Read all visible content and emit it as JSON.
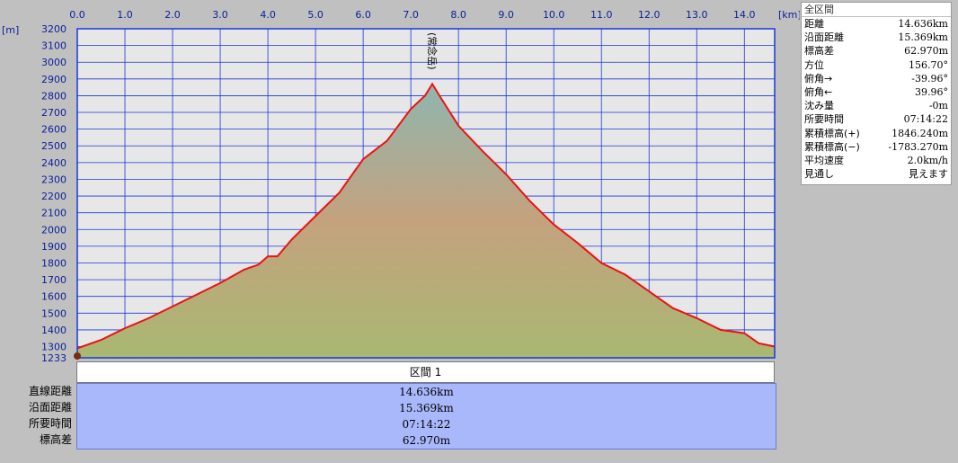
{
  "x_unit": "[km]",
  "y_unit": "[m]",
  "peak_label": "(常念岳)",
  "chart_data": {
    "type": "area",
    "xlim": [
      0,
      14.636
    ],
    "ylim": [
      1233,
      3200
    ],
    "x_ticks": [
      "0.0",
      "1.0",
      "2.0",
      "3.0",
      "4.0",
      "5.0",
      "6.0",
      "7.0",
      "8.0",
      "9.0",
      "10.0",
      "11.0",
      "12.0",
      "13.0",
      "14.0"
    ],
    "y_ticks": [
      "3200",
      "3100",
      "3000",
      "2900",
      "2800",
      "2700",
      "2600",
      "2500",
      "2400",
      "2300",
      "2200",
      "2100",
      "2000",
      "1900",
      "1800",
      "1700",
      "1600",
      "1500",
      "1400",
      "1300",
      "1233"
    ],
    "grid": true,
    "series": [
      {
        "x": [
          0,
          0.5,
          1.0,
          1.5,
          2.0,
          2.5,
          3.0,
          3.5,
          3.8,
          4.0,
          4.2,
          4.5,
          5.0,
          5.5,
          6.0,
          6.5,
          7.0,
          7.3,
          7.45,
          7.6,
          8.0,
          8.5,
          9.0,
          9.5,
          10.0,
          10.5,
          11.0,
          11.5,
          12.0,
          12.5,
          13.0,
          13.5,
          14.0,
          14.3,
          14.636
        ],
        "y": [
          1290,
          1340,
          1410,
          1470,
          1540,
          1610,
          1680,
          1760,
          1790,
          1840,
          1840,
          1940,
          2080,
          2220,
          2420,
          2530,
          2720,
          2800,
          2870,
          2800,
          2620,
          2470,
          2330,
          2170,
          2030,
          1920,
          1800,
          1730,
          1630,
          1530,
          1470,
          1400,
          1380,
          1320,
          1300
        ]
      }
    ]
  },
  "summary": {
    "title": "全区間",
    "rows": [
      {
        "label": "距離",
        "value": "14.636km"
      },
      {
        "label": "沿面距離",
        "value": "15.369km"
      },
      {
        "label": "標高差",
        "value": "62.970m"
      },
      {
        "label": "方位",
        "value": "156.70°"
      },
      {
        "label": "俯角→",
        "value": "-39.96°"
      },
      {
        "label": "俯角←",
        "value": "39.96°"
      },
      {
        "label": "沈み量",
        "value": "-0m"
      },
      {
        "label": "所要時間",
        "value": "07:14:22"
      },
      {
        "label": "累積標高(+)",
        "value": "1846.240m"
      },
      {
        "label": "累積標高(−)",
        "value": "-1783.270m"
      },
      {
        "label": "平均速度",
        "value": "2.0km/h"
      },
      {
        "label": "見通し",
        "value": "見えます"
      }
    ]
  },
  "segment": {
    "title": "区間 1",
    "rows": [
      {
        "label": "直線距離",
        "value": "14.636km"
      },
      {
        "label": "沿面距離",
        "value": "15.369km"
      },
      {
        "label": "所要時間",
        "value": "07:14:22"
      },
      {
        "label": "標高差",
        "value": "62.970m"
      }
    ]
  },
  "colors": {
    "profile_line": "#ee1111",
    "grid": "#1a37d8",
    "plot_bg": "#e7e7e7",
    "fill_top": "#8fb6ae",
    "fill_mid": "#c4a27e",
    "fill_bottom": "#a9b872",
    "marker": "#7a2a10"
  }
}
